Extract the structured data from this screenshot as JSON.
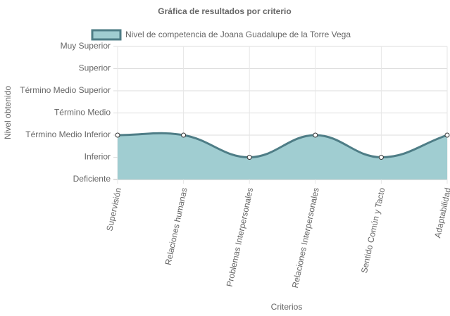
{
  "chart_data": {
    "type": "line",
    "title": "Gráfica de resultados por criterio",
    "x_label": "Criterios",
    "y_label": "Nivel obtenido",
    "categories": [
      "Supervisión",
      "Relaciones humanas",
      "Problemas Interpersonales",
      "Relaciones Interpersonales",
      "Sentido Común y Tacto",
      "Adaptabilidad"
    ],
    "series": [
      {
        "name": "Nivel de competencia de Joana Guadalupe de la Torre Vega",
        "color": "#4e7d86",
        "fill": "#a0cdd1",
        "values": [
          2,
          2,
          1,
          2,
          1,
          2
        ]
      }
    ],
    "ylim": [
      0,
      6
    ],
    "yticks": [
      {
        "value": 0,
        "label": "Deficiente"
      },
      {
        "value": 1,
        "label": "Inferior"
      },
      {
        "value": 2,
        "label": "Término Medio Inferior"
      },
      {
        "value": 3,
        "label": "Término Medio"
      },
      {
        "value": 4,
        "label": "Término Medio Superior"
      },
      {
        "value": 5,
        "label": "Superior"
      },
      {
        "value": 6,
        "label": "Muy Superior"
      }
    ],
    "grid": true,
    "legend": "top"
  }
}
